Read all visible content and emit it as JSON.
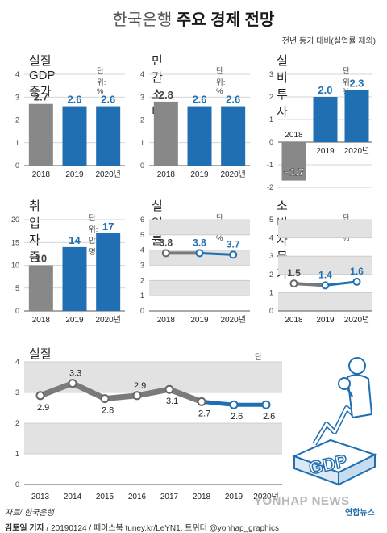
{
  "header": {
    "title_part1": "한국은행",
    "title_part2": "주요 경제 전망",
    "note": "전년 동기 대비(실업률 제외)"
  },
  "colors": {
    "actual": "#888888",
    "forecast": "#1f6fb2",
    "band": "#e2e2e2",
    "line_actual": "#7a7a7a"
  },
  "footer": {
    "source": "자료/ 한국은행",
    "reporter": "김토일 기자",
    "credit_rest": " / 20190124 / 페이스북 tuney.kr/LeYN1, 트위터 @yonhap_graphics",
    "watermark": "YONHAP NEWS",
    "agency": "연합뉴스"
  },
  "illustration": {
    "name": "gdp-growth-illustration",
    "label": "GDP"
  },
  "chart_data": [
    {
      "type": "bar",
      "title": "실질 GDP 증가",
      "unit": "단위: %",
      "categories": [
        "2018",
        "2019",
        "2020년"
      ],
      "values": [
        2.7,
        2.6,
        2.6
      ],
      "labels": [
        "2.7",
        "2.6",
        "2.6"
      ],
      "ylim": [
        0,
        4
      ],
      "yticks": [
        0,
        1,
        2,
        3,
        4
      ],
      "forecast_from": 1
    },
    {
      "type": "bar",
      "title": "민간소비",
      "unit": "단위: %",
      "categories": [
        "2018",
        "2019",
        "2020년"
      ],
      "values": [
        2.8,
        2.6,
        2.6
      ],
      "labels": [
        "2.8",
        "2.6",
        "2.6"
      ],
      "ylim": [
        0,
        4
      ],
      "yticks": [
        0,
        1,
        2,
        3,
        4
      ],
      "forecast_from": 1
    },
    {
      "type": "bar",
      "title": "설비투자",
      "unit": "단위: %",
      "categories": [
        "2018",
        "2019",
        "2020년"
      ],
      "values": [
        -1.7,
        2.0,
        2.3
      ],
      "labels": [
        "−1.7",
        "2.0",
        "2.3"
      ],
      "ylim": [
        -2,
        3
      ],
      "yticks": [
        -2,
        -1,
        0,
        1,
        2,
        3
      ],
      "forecast_from": 1
    },
    {
      "type": "bar",
      "title": "취업자 증가",
      "unit": "단위: 만 명",
      "categories": [
        "2018",
        "2019",
        "2020년"
      ],
      "values": [
        10,
        14,
        17
      ],
      "labels": [
        "10",
        "14",
        "17"
      ],
      "ylim": [
        0,
        20
      ],
      "yticks": [
        0,
        5,
        10,
        15,
        20
      ],
      "forecast_from": 1
    },
    {
      "type": "line",
      "title": "실업률",
      "unit": "단위: %",
      "categories": [
        "2018",
        "2019",
        "2020년"
      ],
      "values": [
        3.8,
        3.8,
        3.7
      ],
      "labels": [
        "3.8",
        "3.8",
        "3.7"
      ],
      "ylim": [
        0,
        6
      ],
      "yticks": [
        0,
        1,
        2,
        3,
        4,
        5,
        6
      ],
      "forecast_from": 1
    },
    {
      "type": "line",
      "title": "소비자물가",
      "unit": "단위: %",
      "categories": [
        "2018",
        "2019",
        "2020년"
      ],
      "values": [
        1.5,
        1.4,
        1.6
      ],
      "labels": [
        "1.5",
        "1.4",
        "1.6"
      ],
      "ylim": [
        0,
        5
      ],
      "yticks": [
        0,
        1,
        2,
        3,
        4,
        5
      ],
      "forecast_from": 1
    },
    {
      "type": "line",
      "title": "실질 GDP 증가",
      "unit": "단위: %",
      "categories": [
        "2013",
        "2014",
        "2015",
        "2016",
        "2017",
        "2018",
        "2019",
        "2020년"
      ],
      "values": [
        2.9,
        3.3,
        2.8,
        2.9,
        3.1,
        2.7,
        2.6,
        2.6
      ],
      "labels": [
        "2.9",
        "3.3",
        "2.8",
        "2.9",
        "3.1",
        "2.7",
        "2.6",
        "2.6"
      ],
      "ylim": [
        0,
        4
      ],
      "yticks": [
        0,
        1,
        2,
        3,
        4
      ],
      "forecast_from": 6
    }
  ]
}
